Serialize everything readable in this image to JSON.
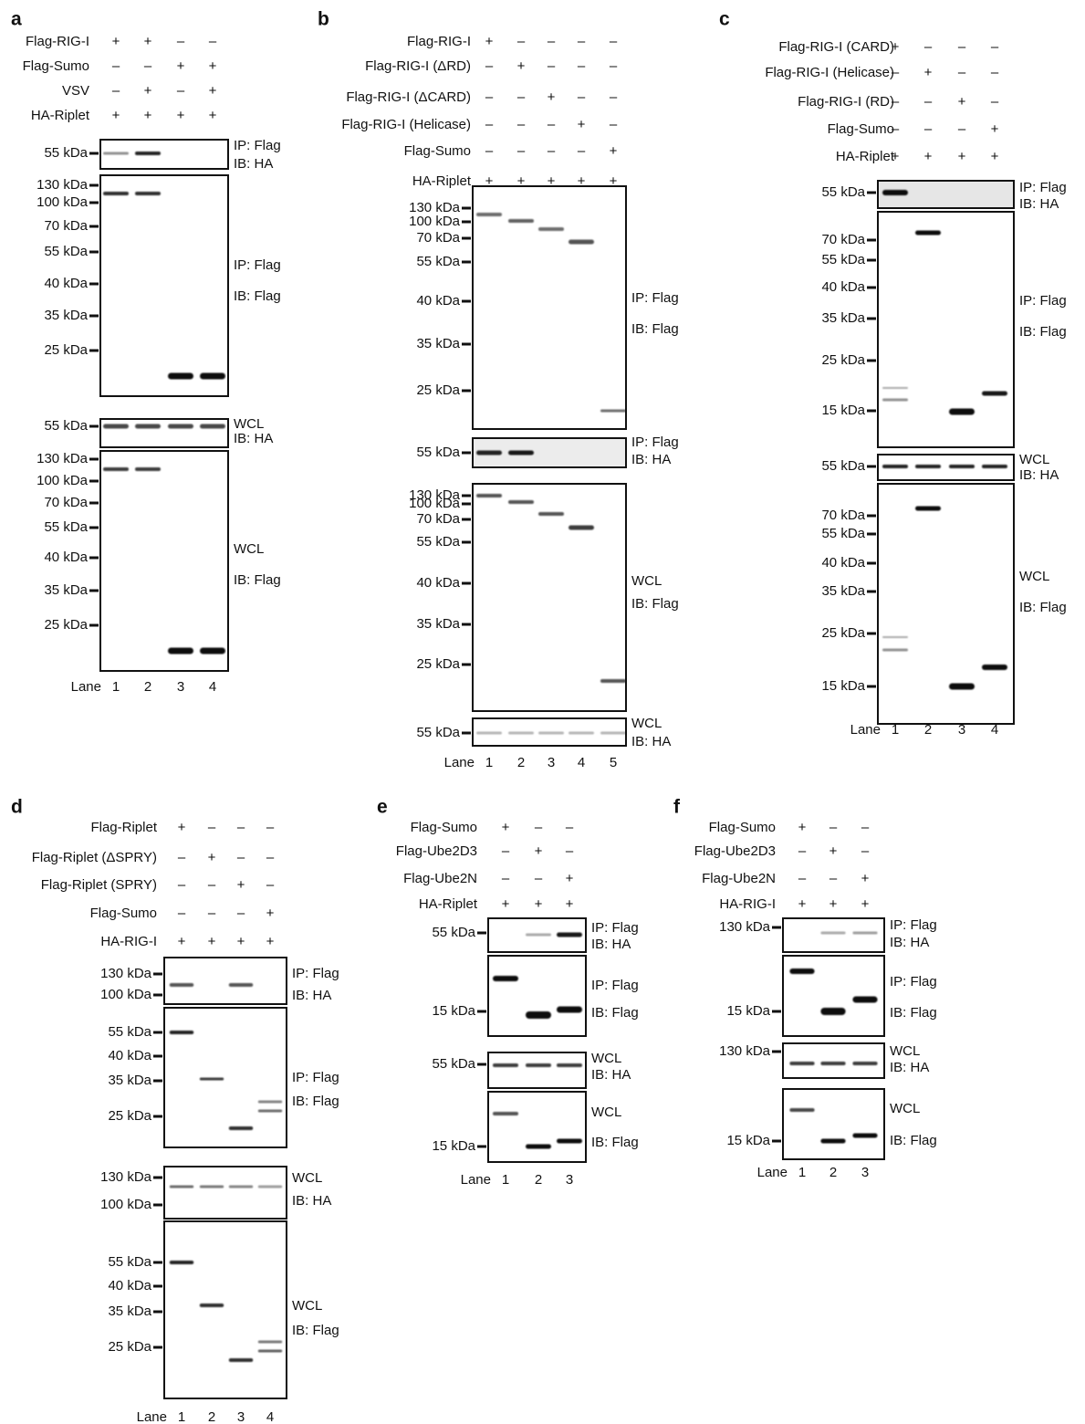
{
  "panels": [
    {
      "label": "a",
      "conditions": [
        {
          "name": "Flag-RIG-I",
          "signs": [
            "+",
            "+",
            "–",
            "–"
          ]
        },
        {
          "name": "Flag-Sumo",
          "signs": [
            "–",
            "–",
            "+",
            "+"
          ]
        },
        {
          "name": "VSV",
          "signs": [
            "–",
            "+",
            "–",
            "+"
          ]
        },
        {
          "name": "HA-Riplet",
          "signs": [
            "+",
            "+",
            "+",
            "+"
          ]
        }
      ],
      "blots": [
        {
          "markers": [
            "55 kDa"
          ],
          "labels": [
            "IP: Flag",
            "IB: HA"
          ]
        },
        {
          "markers": [
            "130 kDa",
            "100 kDa",
            "70 kDa",
            "55 kDa",
            "40 kDa",
            "35 kDa",
            "25 kDa"
          ],
          "labels": [
            "IP: Flag",
            "IB: Flag"
          ]
        },
        {
          "markers": [
            "55 kDa"
          ],
          "labels": [
            "WCL",
            "IB: HA"
          ]
        },
        {
          "markers": [
            "130 kDa",
            "100 kDa",
            "70 kDa",
            "55 kDa",
            "40 kDa",
            "35 kDa",
            "25 kDa"
          ],
          "labels": [
            "WCL",
            "IB: Flag"
          ]
        }
      ],
      "lane_label": "Lane",
      "lanes": [
        "1",
        "2",
        "3",
        "4"
      ]
    },
    {
      "label": "b",
      "conditions": [
        {
          "name": "Flag-RIG-I",
          "signs": [
            "+",
            "–",
            "–",
            "–",
            "–"
          ]
        },
        {
          "name": "Flag-RIG-I (ΔRD)",
          "signs": [
            "–",
            "+",
            "–",
            "–",
            "–"
          ]
        },
        {
          "name": "Flag-RIG-I (ΔCARD)",
          "signs": [
            "–",
            "–",
            "+",
            "–",
            "–"
          ]
        },
        {
          "name": "Flag-RIG-I (Helicase)",
          "signs": [
            "–",
            "–",
            "–",
            "+",
            "–"
          ]
        },
        {
          "name": "Flag-Sumo",
          "signs": [
            "–",
            "–",
            "–",
            "–",
            "+"
          ]
        },
        {
          "name": "HA-Riplet",
          "signs": [
            "+",
            "+",
            "+",
            "+",
            "+"
          ]
        }
      ],
      "blots": [
        {
          "markers": [
            "130 kDa",
            "100 kDa",
            "70 kDa",
            "55 kDa",
            "40 kDa",
            "35 kDa",
            "25 kDa"
          ],
          "labels": [
            "IP: Flag",
            "IB: Flag"
          ]
        },
        {
          "markers": [
            "55 kDa"
          ],
          "labels": [
            "IP: Flag",
            "IB: HA"
          ]
        },
        {
          "markers": [
            "130 kDa",
            "100 kDa",
            "70 kDa",
            "55 kDa",
            "40 kDa",
            "35 kDa",
            "25 kDa"
          ],
          "labels": [
            "WCL",
            "IB: Flag"
          ]
        },
        {
          "markers": [
            "55 kDa"
          ],
          "labels": [
            "WCL",
            "IB: HA"
          ]
        }
      ],
      "lane_label": "Lane",
      "lanes": [
        "1",
        "2",
        "3",
        "4",
        "5"
      ]
    },
    {
      "label": "c",
      "conditions": [
        {
          "name": "Flag-RIG-I (CARD)",
          "signs": [
            "+",
            "–",
            "–",
            "–"
          ]
        },
        {
          "name": "Flag-RIG-I (Helicase)",
          "signs": [
            "–",
            "+",
            "–",
            "–"
          ]
        },
        {
          "name": "Flag-RIG-I (RD)",
          "signs": [
            "–",
            "–",
            "+",
            "–"
          ]
        },
        {
          "name": "Flag-Sumo",
          "signs": [
            "–",
            "–",
            "–",
            "+"
          ]
        },
        {
          "name": "HA-Riplet",
          "signs": [
            "+",
            "+",
            "+",
            "+"
          ]
        }
      ],
      "blots": [
        {
          "markers": [
            "55 kDa"
          ],
          "labels": [
            "IP: Flag",
            "IB: HA"
          ]
        },
        {
          "markers": [
            "70 kDa",
            "55 kDa",
            "40 kDa",
            "35 kDa",
            "25 kDa",
            "15 kDa"
          ],
          "labels": [
            "IP: Flag",
            "IB: Flag"
          ]
        },
        {
          "markers": [
            "55 kDa"
          ],
          "labels": [
            "WCL",
            "IB: HA"
          ]
        },
        {
          "markers": [
            "70 kDa",
            "55 kDa",
            "40 kDa",
            "35 kDa",
            "25 kDa",
            "15 kDa"
          ],
          "labels": [
            "WCL",
            "IB: Flag"
          ]
        }
      ],
      "lane_label": "Lane",
      "lanes": [
        "1",
        "2",
        "3",
        "4"
      ]
    },
    {
      "label": "d",
      "conditions": [
        {
          "name": "Flag-Riplet",
          "signs": [
            "+",
            "–",
            "–",
            "–"
          ]
        },
        {
          "name": "Flag-Riplet (ΔSPRY)",
          "signs": [
            "–",
            "+",
            "–",
            "–"
          ]
        },
        {
          "name": "Flag-Riplet (SPRY)",
          "signs": [
            "–",
            "–",
            "+",
            "–"
          ]
        },
        {
          "name": "Flag-Sumo",
          "signs": [
            "–",
            "–",
            "–",
            "+"
          ]
        },
        {
          "name": "HA-RIG-I",
          "signs": [
            "+",
            "+",
            "+",
            "+"
          ]
        }
      ],
      "blots": [
        {
          "markers": [
            "130 kDa",
            "100 kDa"
          ],
          "labels": [
            "IP: Flag",
            "IB: HA"
          ]
        },
        {
          "markers": [
            "55 kDa",
            "40 kDa",
            "35 kDa",
            "25 kDa"
          ],
          "labels": [
            "IP: Flag",
            "IB: Flag"
          ]
        },
        {
          "markers": [
            "130 kDa",
            "100 kDa"
          ],
          "labels": [
            "WCL",
            "IB: HA"
          ]
        },
        {
          "markers": [
            "55 kDa",
            "40 kDa",
            "35 kDa",
            "25 kDa"
          ],
          "labels": [
            "WCL",
            "IB: Flag"
          ]
        }
      ],
      "lane_label": "Lane",
      "lanes": [
        "1",
        "2",
        "3",
        "4"
      ]
    },
    {
      "label": "e",
      "conditions": [
        {
          "name": "Flag-Sumo",
          "signs": [
            "+",
            "–",
            "–"
          ]
        },
        {
          "name": "Flag-Ube2D3",
          "signs": [
            "–",
            "+",
            "–"
          ]
        },
        {
          "name": "Flag-Ube2N",
          "signs": [
            "–",
            "–",
            "+"
          ]
        },
        {
          "name": "HA-Riplet",
          "signs": [
            "+",
            "+",
            "+"
          ]
        }
      ],
      "blots": [
        {
          "markers": [
            "55 kDa"
          ],
          "labels": [
            "IP: Flag",
            "IB: HA"
          ]
        },
        {
          "markers": [
            "15 kDa"
          ],
          "labels": [
            "IP: Flag",
            "IB: Flag"
          ]
        },
        {
          "markers": [
            "55 kDa"
          ],
          "labels": [
            "WCL",
            "IB: HA"
          ]
        },
        {
          "markers": [
            "15 kDa"
          ],
          "labels": [
            "WCL",
            "IB: Flag"
          ]
        }
      ],
      "lane_label": "Lane",
      "lanes": [
        "1",
        "2",
        "3"
      ]
    },
    {
      "label": "f",
      "conditions": [
        {
          "name": "Flag-Sumo",
          "signs": [
            "+",
            "–",
            "–"
          ]
        },
        {
          "name": "Flag-Ube2D3",
          "signs": [
            "–",
            "+",
            "–"
          ]
        },
        {
          "name": "Flag-Ube2N",
          "signs": [
            "–",
            "–",
            "+"
          ]
        },
        {
          "name": "HA-RIG-I",
          "signs": [
            "+",
            "+",
            "+"
          ]
        }
      ],
      "blots": [
        {
          "markers": [
            "130 kDa"
          ],
          "labels": [
            "IP: Flag",
            "IB: HA"
          ]
        },
        {
          "markers": [
            "15 kDa"
          ],
          "labels": [
            "IP: Flag",
            "IB: Flag"
          ]
        },
        {
          "markers": [
            "130 kDa"
          ],
          "labels": [
            "WCL",
            "IB: HA"
          ]
        },
        {
          "markers": [
            "15 kDa"
          ],
          "labels": [
            "WCL",
            "IB: Flag"
          ]
        }
      ],
      "lane_label": "Lane",
      "lanes": [
        "1",
        "2",
        "3"
      ]
    }
  ]
}
